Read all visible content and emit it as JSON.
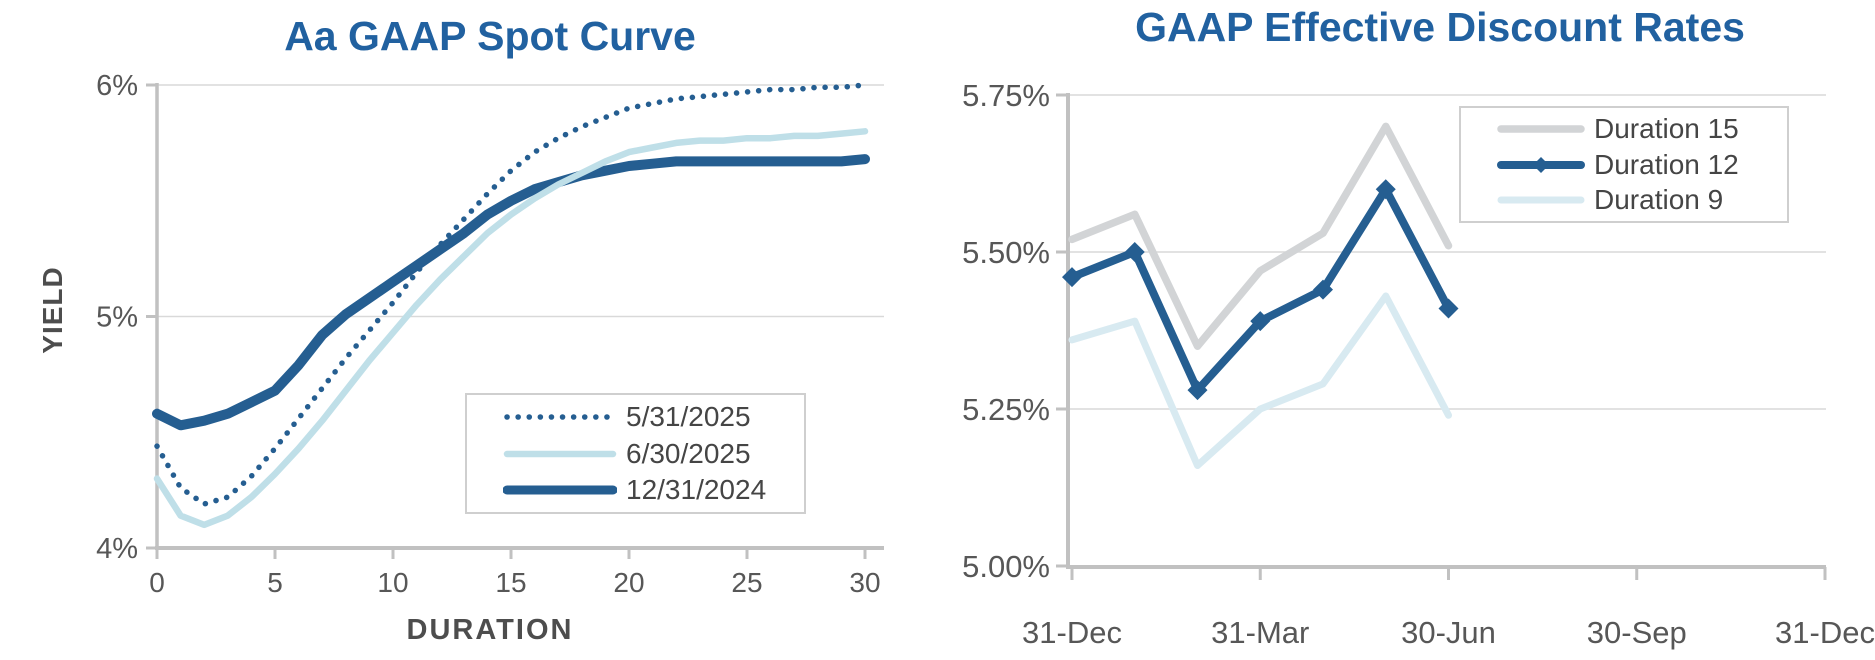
{
  "colors": {
    "title": "#2161A0",
    "dark_blue_series": "#255E91",
    "light_blue_series": "#BFDFE8",
    "pale_blue_series": "#D8EAF1",
    "gray_series": "#D2D4D6",
    "axis_line": "#C1C1C1",
    "gridline": "#D9D9D9",
    "tick_label": "#575757",
    "axis_title": "#4D4D4D",
    "legend_text": "#454545",
    "legend_border": "#CFCFCF",
    "background": "#FFFFFF"
  },
  "chart_data": [
    {
      "type": "line",
      "title": "Aa GAAP Spot Curve",
      "xlabel": "DURATION",
      "ylabel": "YIELD",
      "xlim": [
        0,
        30
      ],
      "ylim": [
        4,
        6
      ],
      "grid": "horizontal",
      "legend_position": "inside-bottom-right",
      "x_ticks": [
        0,
        5,
        10,
        15,
        20,
        25,
        30
      ],
      "y_ticks": [
        {
          "value": 6,
          "label": "6%"
        },
        {
          "value": 5,
          "label": "5%"
        },
        {
          "value": 4,
          "label": "4%"
        }
      ],
      "x_start": 0,
      "x_step": 1,
      "series": [
        {
          "name": "5/31/2025",
          "color": "#255E91",
          "line_style": "dotted",
          "width": 5.5,
          "marker": null,
          "y": [
            4.44,
            4.26,
            4.19,
            4.22,
            4.31,
            4.43,
            4.56,
            4.69,
            4.82,
            4.94,
            5.06,
            5.19,
            5.31,
            5.42,
            5.53,
            5.63,
            5.71,
            5.77,
            5.82,
            5.86,
            5.9,
            5.92,
            5.94,
            5.95,
            5.96,
            5.97,
            5.98,
            5.98,
            5.99,
            5.99,
            6.0
          ]
        },
        {
          "name": "6/30/2025",
          "color": "#BFDFE8",
          "line_style": "solid",
          "width": 6.5,
          "marker": null,
          "y": [
            4.3,
            4.14,
            4.1,
            4.14,
            4.22,
            4.32,
            4.43,
            4.55,
            4.68,
            4.81,
            4.93,
            5.05,
            5.16,
            5.26,
            5.36,
            5.44,
            5.51,
            5.57,
            5.62,
            5.67,
            5.71,
            5.73,
            5.75,
            5.76,
            5.76,
            5.77,
            5.77,
            5.78,
            5.78,
            5.79,
            5.8
          ]
        },
        {
          "name": "12/31/2024",
          "color": "#255E91",
          "line_style": "solid",
          "width": 10,
          "marker": null,
          "y": [
            4.58,
            4.53,
            4.55,
            4.58,
            4.63,
            4.68,
            4.79,
            4.92,
            5.01,
            5.08,
            5.15,
            5.22,
            5.29,
            5.36,
            5.44,
            5.5,
            5.55,
            5.58,
            5.61,
            5.63,
            5.65,
            5.66,
            5.67,
            5.67,
            5.67,
            5.67,
            5.67,
            5.67,
            5.67,
            5.67,
            5.68
          ]
        }
      ]
    },
    {
      "type": "line",
      "title": "GAAP Effective Discount Rates",
      "xlabel": "",
      "ylabel": "",
      "xlim": [
        0,
        12
      ],
      "ylim": [
        5.0,
        5.75
      ],
      "grid": "horizontal",
      "legend_position": "inside-top-right",
      "x_tick_labels": [
        "31-Dec",
        "31-Mar",
        "30-Jun",
        "30-Sep",
        "31-Dec"
      ],
      "x_tick_months": [
        0,
        3,
        6,
        9,
        12
      ],
      "y_ticks": [
        {
          "value": 5.75,
          "label": "5.75%"
        },
        {
          "value": 5.5,
          "label": "5.50%"
        },
        {
          "value": 5.25,
          "label": "5.25%"
        },
        {
          "value": 5.0,
          "label": "5.00%"
        }
      ],
      "x_months": [
        0,
        1,
        2,
        3,
        4,
        5,
        6
      ],
      "series": [
        {
          "name": "Duration 15",
          "color": "#D2D4D6",
          "line_style": "solid",
          "width": 7.5,
          "marker": null,
          "values": [
            5.52,
            5.56,
            5.35,
            5.47,
            5.53,
            5.7,
            5.51
          ]
        },
        {
          "name": "Duration 12",
          "color": "#255E91",
          "line_style": "solid",
          "width": 8,
          "marker": "diamond",
          "values": [
            5.46,
            5.5,
            5.28,
            5.39,
            5.44,
            5.6,
            5.41
          ]
        },
        {
          "name": "Duration 9",
          "color": "#D8EAF1",
          "line_style": "solid",
          "width": 7,
          "marker": null,
          "values": [
            5.36,
            5.39,
            5.16,
            5.25,
            5.29,
            5.43,
            5.24
          ]
        }
      ]
    }
  ]
}
